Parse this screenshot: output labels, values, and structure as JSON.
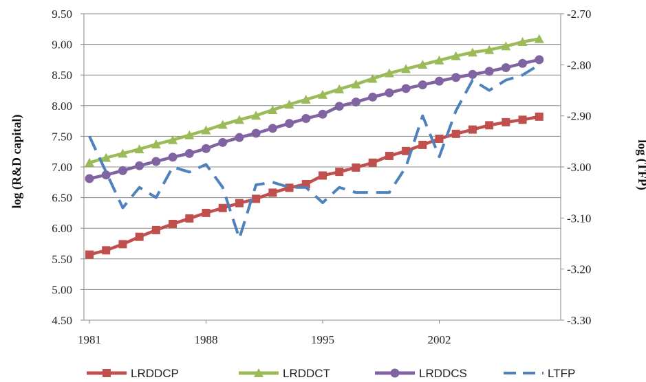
{
  "chart_data": {
    "type": "line",
    "title": "",
    "xlabel": "",
    "ylabel": "log (R&D  capital)",
    "y2label": "log (TFP)",
    "x": [
      1981,
      1982,
      1983,
      1984,
      1985,
      1986,
      1987,
      1988,
      1989,
      1990,
      1991,
      1992,
      1993,
      1994,
      1995,
      1996,
      1997,
      1998,
      1999,
      2000,
      2001,
      2002,
      2003,
      2004,
      2005,
      2006,
      2007,
      2008
    ],
    "xticks": [
      "1981",
      "1988",
      "1995",
      "2002"
    ],
    "xlim": [
      1981,
      2009
    ],
    "ylim": [
      4.5,
      9.5
    ],
    "yticks": [
      "4.50",
      "5.00",
      "5.50",
      "6.00",
      "6.50",
      "7.00",
      "7.50",
      "8.00",
      "8.50",
      "9.00",
      "9.50"
    ],
    "y2lim": [
      -3.3,
      -2.7
    ],
    "y2ticks": [
      "-3.30",
      "-3.20",
      "-3.10",
      "-3.00",
      "-2.90",
      "-2.80",
      "-2.70"
    ],
    "grid": true,
    "legend": "bottom",
    "series": [
      {
        "name": "LRDDCP",
        "axis": "left",
        "color": "#c0504d",
        "marker": "square",
        "dash": false,
        "values": [
          5.57,
          5.64,
          5.74,
          5.86,
          5.97,
          6.07,
          6.16,
          6.25,
          6.33,
          6.41,
          6.48,
          6.58,
          6.66,
          6.72,
          6.86,
          6.92,
          6.99,
          7.07,
          7.18,
          7.26,
          7.36,
          7.46,
          7.54,
          7.61,
          7.68,
          7.73,
          7.77,
          7.82
        ]
      },
      {
        "name": "LRDDCT",
        "axis": "left",
        "color": "#9bbb59",
        "marker": "triangle",
        "dash": false,
        "values": [
          7.07,
          7.15,
          7.22,
          7.29,
          7.37,
          7.44,
          7.52,
          7.6,
          7.69,
          7.77,
          7.84,
          7.93,
          8.02,
          8.1,
          8.18,
          8.27,
          8.35,
          8.44,
          8.53,
          8.6,
          8.67,
          8.74,
          8.81,
          8.87,
          8.91,
          8.97,
          9.04,
          9.09
        ]
      },
      {
        "name": "LRDDCS",
        "axis": "left",
        "color": "#8064a2",
        "marker": "circle",
        "dash": false,
        "values": [
          6.81,
          6.87,
          6.94,
          7.02,
          7.09,
          7.16,
          7.22,
          7.3,
          7.4,
          7.48,
          7.55,
          7.63,
          7.71,
          7.79,
          7.86,
          7.99,
          8.06,
          8.14,
          8.21,
          8.28,
          8.34,
          8.4,
          8.46,
          8.51,
          8.56,
          8.62,
          8.69,
          8.75
        ]
      },
      {
        "name": "LTFP",
        "axis": "right",
        "color": "#4f81bd",
        "marker": "none",
        "dash": true,
        "values": [
          -2.94,
          -3.01,
          -3.08,
          -3.04,
          -3.06,
          -3.0,
          -3.01,
          -2.995,
          -3.04,
          -3.14,
          -3.035,
          -3.03,
          -3.04,
          -3.04,
          -3.07,
          -3.04,
          -3.05,
          -3.05,
          -3.05,
          -3.0,
          -2.9,
          -2.98,
          -2.89,
          -2.83,
          -2.85,
          -2.83,
          -2.82,
          -2.8
        ]
      }
    ]
  }
}
